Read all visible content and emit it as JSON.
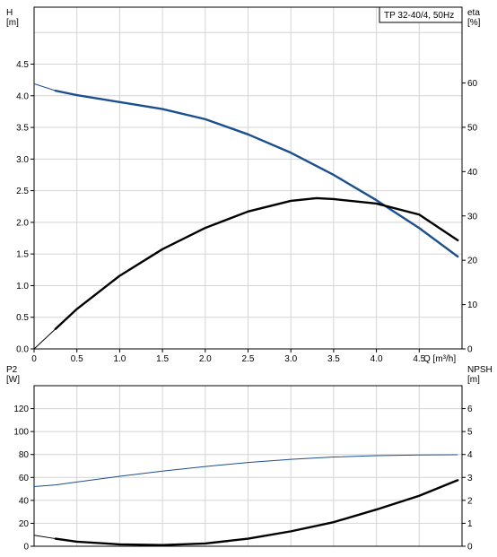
{
  "chart_data": [
    {
      "type": "line",
      "title_box": "TP 32-40/4, 50Hz",
      "ylabel_left": "H",
      "yunit_left": "[m]",
      "ylabel_right": "eta",
      "yunit_right": "[%]",
      "xlabel": "Q [m³/h]",
      "xlim": [
        0,
        5.0
      ],
      "x_ticks": [
        "0",
        "0.5",
        "1.0",
        "1.5",
        "2.0",
        "2.5",
        "3.0",
        "3.5",
        "4.0",
        "4.5"
      ],
      "ylim_left": [
        0,
        5.4
      ],
      "y_ticks_left": [
        "0.0",
        "0.5",
        "1.0",
        "1.5",
        "2.0",
        "2.5",
        "3.0",
        "3.5",
        "4.0",
        "4.5"
      ],
      "ylim_right": [
        0,
        77.1
      ],
      "y_ticks_right": [
        "0",
        "10",
        "20",
        "30",
        "40",
        "50",
        "60"
      ],
      "grid": true,
      "series": [
        {
          "axis": "left",
          "color": "#1b4f8f",
          "x": [
            0.0,
            0.25,
            0.5,
            1.0,
            1.5,
            2.0,
            2.5,
            3.0,
            3.5,
            4.0,
            4.5,
            4.95
          ],
          "y": [
            4.19,
            4.08,
            4.01,
            3.9,
            3.79,
            3.63,
            3.39,
            3.1,
            2.75,
            2.35,
            1.91,
            1.46
          ],
          "thick_from": 0.25
        },
        {
          "axis": "right",
          "color": "#000000",
          "x": [
            0.0,
            0.25,
            0.5,
            1.0,
            1.5,
            2.0,
            2.5,
            3.0,
            3.3,
            3.5,
            4.0,
            4.5,
            4.95
          ],
          "y": [
            0,
            4.5,
            9.0,
            16.5,
            22.5,
            27.3,
            31.0,
            33.4,
            34.0,
            33.8,
            32.8,
            30.3,
            24.5
          ],
          "thick_from": 0.25
        }
      ]
    },
    {
      "type": "line",
      "ylabel_left": "P2",
      "yunit_left": "[W]",
      "ylabel_right": "NPSH",
      "yunit_right": "[m]",
      "xlim": [
        0,
        5.0
      ],
      "ylim_left": [
        0,
        140
      ],
      "y_ticks_left": [
        "0",
        "20",
        "40",
        "60",
        "80",
        "100",
        "120"
      ],
      "ylim_right": [
        0,
        7
      ],
      "y_ticks_right": [
        "0",
        "1",
        "2",
        "3",
        "4",
        "5",
        "6"
      ],
      "grid": true,
      "series": [
        {
          "axis": "left",
          "color": "#1b4f8f",
          "x": [
            0.0,
            0.25,
            0.5,
            1.0,
            1.5,
            2.0,
            2.5,
            3.0,
            3.5,
            4.0,
            4.5,
            4.95
          ],
          "y": [
            52,
            53.5,
            56,
            61,
            65.5,
            69.5,
            73,
            75.8,
            77.8,
            79,
            79.6,
            79.8
          ],
          "thick_from": 99
        },
        {
          "axis": "right",
          "color": "#000000",
          "x": [
            0.0,
            0.25,
            0.5,
            1.0,
            1.5,
            2.0,
            2.5,
            3.0,
            3.5,
            4.0,
            4.5,
            4.95
          ],
          "y": [
            0.48,
            0.33,
            0.2,
            0.08,
            0.05,
            0.12,
            0.33,
            0.65,
            1.05,
            1.6,
            2.2,
            2.88
          ],
          "thick_from": 0.25
        }
      ]
    }
  ]
}
